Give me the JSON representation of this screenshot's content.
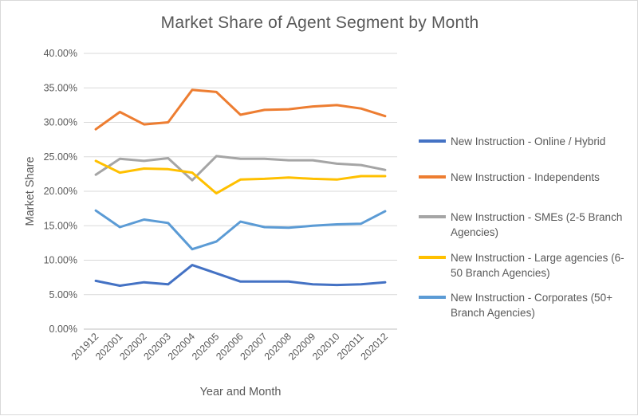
{
  "chart_data": {
    "type": "line",
    "title": "Market Share of Agent Segment by Month",
    "xlabel": "Year and Month",
    "ylabel": "Market Share",
    "categories": [
      "201912",
      "202001",
      "202002",
      "202003",
      "202004",
      "202005",
      "202006",
      "202007",
      "202008",
      "202009",
      "202010",
      "202011",
      "202012"
    ],
    "y_ticks": [
      "0.00%",
      "5.00%",
      "10.00%",
      "15.00%",
      "20.00%",
      "25.00%",
      "30.00%",
      "35.00%",
      "40.00%"
    ],
    "ylim": [
      0,
      40
    ],
    "grid": true,
    "legend_position": "right",
    "series": [
      {
        "name": "New Instruction - Online / Hybrid",
        "color": "#4472c4",
        "values": [
          7.0,
          6.3,
          6.8,
          6.5,
          9.3,
          8.1,
          6.9,
          6.9,
          6.9,
          6.5,
          6.4,
          6.5,
          6.8
        ]
      },
      {
        "name": "New Instruction - Independents",
        "color": "#ed7d31",
        "values": [
          29.0,
          31.5,
          29.7,
          30.0,
          34.7,
          34.4,
          31.1,
          31.8,
          31.9,
          32.3,
          32.5,
          32.0,
          30.9
        ]
      },
      {
        "name": "New Instruction - SMEs (2-5 Branch Agencies)",
        "color": "#a5a5a5",
        "values": [
          22.4,
          24.7,
          24.4,
          24.8,
          21.6,
          25.1,
          24.7,
          24.7,
          24.5,
          24.5,
          24.0,
          23.8,
          23.1
        ]
      },
      {
        "name": "New Instruction - Large agencies (6-50 Branch Agencies)",
        "color": "#ffc000",
        "values": [
          24.4,
          22.7,
          23.3,
          23.2,
          22.7,
          19.7,
          21.7,
          21.8,
          22.0,
          21.8,
          21.7,
          22.2,
          22.2
        ]
      },
      {
        "name": "New Instruction - Corporates (50+ Branch Agencies)",
        "color": "#5b9bd5",
        "values": [
          17.2,
          14.8,
          15.9,
          15.4,
          11.6,
          12.7,
          15.6,
          14.8,
          14.7,
          15.0,
          15.2,
          15.3,
          17.1
        ]
      }
    ]
  }
}
